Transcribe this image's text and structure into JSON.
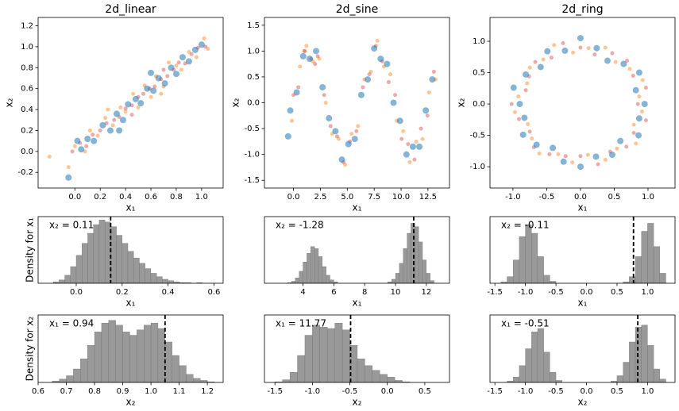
{
  "chart_data": [
    {
      "type": "scatter",
      "title": "2d_linear",
      "xlabel": "x₁",
      "ylabel": "x₂",
      "xlim": [
        -0.29,
        1.17
      ],
      "ylim": [
        -0.35,
        1.28
      ],
      "xticks": [
        {
          "value": 0,
          "label": "0.0"
        },
        0.2,
        0.4,
        0.6,
        0.8,
        {
          "value": 1,
          "label": "1.0"
        }
      ],
      "yticks": [
        -0.2,
        {
          "value": 0,
          "label": "0.0"
        },
        0.2,
        0.4,
        0.6,
        0.8,
        {
          "value": 1,
          "label": "1.0"
        },
        1.2
      ],
      "series": [
        {
          "color": "#ff7f0e",
          "size": 2.5,
          "alpha": 0.45,
          "x": [
            -0.2,
            0.0,
            0.08,
            0.12,
            0.18,
            0.24,
            0.3,
            0.36,
            0.4,
            0.46,
            0.5,
            0.55,
            0.6,
            0.64,
            0.7,
            0.74,
            0.8,
            0.84,
            0.9,
            0.96,
            1.02,
            1.05,
            0.26,
            0.68,
            -0.05
          ],
          "values": [
            -0.05,
            0.05,
            0.0,
            0.2,
            0.15,
            0.32,
            0.25,
            0.42,
            0.38,
            0.55,
            0.42,
            0.63,
            0.52,
            0.72,
            0.62,
            0.85,
            0.82,
            0.78,
            0.95,
            0.9,
            1.08,
            0.98,
            0.4,
            0.55,
            -0.15
          ]
        },
        {
          "color": "#d62728",
          "size": 2.5,
          "alpha": 0.4,
          "x": [
            -0.02,
            0.04,
            0.09,
            0.14,
            0.2,
            0.25,
            0.31,
            0.35,
            0.4,
            0.45,
            0.5,
            0.54,
            0.59,
            0.63,
            0.68,
            0.73,
            0.78,
            0.82,
            0.87,
            0.92,
            0.97,
            1.03,
            0.45,
            0.7
          ],
          "values": [
            0.0,
            0.08,
            0.05,
            0.16,
            0.2,
            0.27,
            0.3,
            0.33,
            0.41,
            0.44,
            0.52,
            0.55,
            0.6,
            0.62,
            0.69,
            0.72,
            0.78,
            0.85,
            0.84,
            0.93,
            0.99,
            1.0,
            0.35,
            0.78
          ]
        },
        {
          "color": "#1f77b4",
          "size": 4,
          "alpha": 0.55,
          "x": [
            -0.05,
            0.05,
            0.1,
            0.15,
            0.22,
            0.28,
            0.33,
            0.38,
            0.42,
            0.48,
            0.52,
            0.57,
            0.62,
            0.66,
            0.71,
            0.76,
            0.8,
            0.85,
            0.9,
            0.95,
            1.0,
            0.35,
            0.6,
            0.02
          ],
          "values": [
            -0.25,
            0.02,
            0.12,
            0.1,
            0.25,
            0.2,
            0.36,
            0.3,
            0.45,
            0.5,
            0.46,
            0.6,
            0.58,
            0.7,
            0.65,
            0.8,
            0.74,
            0.9,
            0.86,
            0.97,
            1.02,
            0.2,
            0.75,
            0.1
          ]
        }
      ]
    },
    {
      "type": "scatter",
      "title": "2d_sine",
      "xlabel": "x₁",
      "ylabel": "x₂",
      "xlim": [
        -2.7,
        14.5
      ],
      "ylim": [
        -1.65,
        1.65
      ],
      "xticks": [
        {
          "value": 0,
          "label": "0.0"
        },
        2.5,
        {
          "value": 5,
          "label": "5.0"
        },
        7.5,
        {
          "value": 10,
          "label": "10.0"
        },
        12.5
      ],
      "yticks": [
        -1.5,
        {
          "value": -1,
          "label": "-1.0"
        },
        -0.5,
        {
          "value": 0,
          "label": "0.0"
        },
        0.5,
        {
          "value": 1,
          "label": "1.0"
        },
        1.5
      ],
      "series": [
        {
          "color": "#ff7f0e",
          "size": 2.5,
          "alpha": 0.45,
          "x": [
            -0.15,
            0.6,
            1.2,
            1.8,
            2.4,
            3.0,
            3.6,
            4.2,
            4.8,
            5.4,
            6.0,
            6.6,
            7.2,
            7.8,
            8.4,
            9.0,
            9.6,
            10.2,
            10.8,
            11.4,
            12.0,
            12.6,
            13.2,
            1.0
          ],
          "values": [
            -0.35,
            0.7,
            1.1,
            0.8,
            0.85,
            0.0,
            -0.6,
            -0.7,
            -1.2,
            -0.6,
            -0.45,
            0.45,
            0.6,
            1.2,
            0.7,
            0.55,
            -0.35,
            -0.55,
            -1.15,
            -0.75,
            -0.7,
            0.2,
            0.45,
            1.0
          ]
        },
        {
          "color": "#d62728",
          "size": 2.5,
          "alpha": 0.4,
          "x": [
            0.0,
            0.45,
            1.05,
            1.65,
            2.25,
            2.85,
            3.45,
            4.05,
            4.65,
            5.25,
            5.85,
            6.45,
            7.05,
            7.65,
            8.25,
            8.85,
            9.45,
            10.05,
            10.65,
            11.25,
            11.85,
            12.45,
            13.05,
            2.0
          ],
          "values": [
            0.15,
            0.3,
            1.0,
            0.85,
            0.9,
            0.15,
            -0.45,
            -0.65,
            -1.15,
            -0.75,
            -0.55,
            0.3,
            0.55,
            1.1,
            0.8,
            0.4,
            0.15,
            -0.7,
            -0.8,
            -1.1,
            -0.5,
            -0.25,
            0.6,
            0.75
          ]
        },
        {
          "color": "#1f77b4",
          "size": 4,
          "alpha": 0.55,
          "x": [
            -0.3,
            0.3,
            0.9,
            1.5,
            2.1,
            2.7,
            3.3,
            3.9,
            4.5,
            5.1,
            5.7,
            6.3,
            6.9,
            7.5,
            8.1,
            8.7,
            9.3,
            9.9,
            10.5,
            11.1,
            11.7,
            12.3,
            12.9,
            -0.5
          ],
          "values": [
            -0.15,
            0.2,
            0.9,
            0.85,
            1.0,
            0.3,
            -0.3,
            -0.55,
            -1.1,
            -0.8,
            -0.7,
            0.15,
            0.45,
            1.05,
            0.85,
            0.75,
            0.0,
            -0.35,
            -1.0,
            -0.85,
            -0.85,
            -0.15,
            0.45,
            -0.65
          ]
        }
      ]
    },
    {
      "type": "scatter",
      "title": "2d_ring",
      "xlabel": "x₁",
      "ylabel": "x₂",
      "xlim": [
        -1.34,
        1.4
      ],
      "ylim": [
        -1.34,
        1.38
      ],
      "xticks": [
        {
          "value": -1,
          "label": "-1.0"
        },
        -0.5,
        {
          "value": 0,
          "label": "0.0"
        },
        0.5,
        {
          "value": 1,
          "label": "1.0"
        }
      ],
      "yticks": [
        {
          "value": -1,
          "label": "-1.0"
        },
        -0.5,
        {
          "value": 0,
          "label": "0.0"
        },
        0.5,
        {
          "value": 1,
          "label": "1.0"
        }
      ],
      "series": [
        {
          "color": "#ff7f0e",
          "size": 2.5,
          "alpha": 0.45,
          "x": [
            0.87,
            0.92,
            0.73,
            0.52,
            0.37,
            0.12,
            -0.11,
            -0.39,
            -0.55,
            -0.75,
            -0.79,
            -0.92,
            -0.97,
            -0.78,
            -0.72,
            -0.61,
            -0.33,
            -0.12,
            0.11,
            0.37,
            0.54,
            0.82,
            0.79,
            0.91
          ],
          "values": [
            0.12,
            0.38,
            0.56,
            0.67,
            0.9,
            0.89,
            0.82,
            0.94,
            0.71,
            0.58,
            0.33,
            0.12,
            -0.13,
            -0.32,
            -0.55,
            -0.79,
            -0.8,
            -0.93,
            -0.81,
            -0.89,
            -0.71,
            -0.63,
            -0.33,
            -0.12
          ]
        },
        {
          "color": "#d62728",
          "size": 2.5,
          "alpha": 0.4,
          "x": [
            0.85,
            0.97,
            0.78,
            0.69,
            0.47,
            0.21,
            0.0,
            -0.26,
            -0.43,
            -0.67,
            -0.76,
            -0.81,
            -1.02,
            -0.91,
            -0.75,
            -0.69,
            -0.46,
            -0.22,
            0.0,
            0.26,
            0.44,
            0.68,
            0.79,
            0.97
          ],
          "values": [
            0.0,
            0.26,
            0.45,
            0.69,
            0.81,
            0.79,
            0.9,
            0.97,
            0.74,
            0.67,
            0.44,
            0.22,
            0.0,
            -0.24,
            -0.44,
            -0.69,
            -0.8,
            -0.83,
            -0.83,
            -0.96,
            -0.76,
            -0.68,
            -0.46,
            -0.26
          ]
        },
        {
          "color": "#1f77b4",
          "size": 4,
          "alpha": 0.55,
          "x": [
            0.95,
            0.82,
            0.87,
            0.64,
            0.4,
            0.24,
            0.0,
            -0.23,
            -0.49,
            -0.59,
            -0.81,
            -0.99,
            -0.9,
            -0.83,
            -0.85,
            -0.65,
            -0.41,
            -0.25,
            0.0,
            0.23,
            0.47,
            0.59,
            0.86,
            0.87
          ],
          "values": [
            0.0,
            0.22,
            0.5,
            0.64,
            0.69,
            0.89,
            1.05,
            0.85,
            0.84,
            0.59,
            0.47,
            0.26,
            0.0,
            -0.22,
            -0.49,
            -0.65,
            -0.7,
            -0.92,
            -1.0,
            -0.84,
            -0.81,
            -0.59,
            -0.5,
            -0.23
          ]
        }
      ]
    },
    {
      "type": "histogram",
      "xlabel": "x₁",
      "ylabel": "Density for x₁",
      "annotation": "x₂ = 0.11",
      "vline": 0.15,
      "color": "#999999",
      "xlim": [
        -0.166,
        0.64
      ],
      "ylim": [
        0,
        100
      ],
      "xticks": [
        {
          "value": 0,
          "label": "0.0"
        },
        0.2,
        0.4,
        0.6
      ],
      "bins": [
        -0.1,
        -0.075,
        -0.05,
        -0.025,
        0,
        0.025,
        0.05,
        0.075,
        0.1,
        0.125,
        0.15,
        0.175,
        0.2,
        0.225,
        0.25,
        0.275,
        0.3,
        0.325,
        0.35,
        0.375,
        0.4,
        0.425,
        0.45,
        0.475,
        0.5,
        0.525,
        0.55
      ],
      "values": [
        2,
        5,
        12,
        25,
        42,
        60,
        75,
        88,
        95,
        92,
        85,
        72,
        60,
        48,
        38,
        30,
        22,
        15,
        10,
        6,
        4,
        2,
        1,
        1,
        0,
        1
      ]
    },
    {
      "type": "histogram",
      "xlabel": "x₁",
      "annotation": "x₂ = -1.28",
      "vline": 11.18,
      "color": "#999999",
      "xlim": [
        1.5,
        13.5
      ],
      "ylim": [
        0,
        100
      ],
      "xticks": [
        4,
        6,
        8,
        10,
        12
      ],
      "bins": [
        3.0,
        3.25,
        3.5,
        3.75,
        4.0,
        4.25,
        4.5,
        4.75,
        5.0,
        5.25,
        5.5,
        5.75,
        6.0,
        6.25,
        6.5,
        6.75,
        7.0,
        7.25,
        7.5,
        7.75,
        8.0,
        8.25,
        8.5,
        8.75,
        9.0,
        9.25,
        9.5,
        9.75,
        10.0,
        10.25,
        10.5,
        10.75,
        11.0,
        11.25,
        11.5,
        11.75,
        12.0,
        12.25,
        12.5
      ],
      "values": [
        1,
        3,
        8,
        18,
        32,
        45,
        55,
        52,
        40,
        25,
        12,
        5,
        2,
        0,
        0,
        0,
        0,
        0,
        0,
        0,
        0,
        0,
        0,
        0,
        0,
        0,
        2,
        6,
        15,
        30,
        52,
        75,
        90,
        85,
        62,
        35,
        15,
        4
      ]
    },
    {
      "type": "histogram",
      "xlabel": "x₁",
      "annotation": "x₂ = -0.11",
      "vline": 0.77,
      "color": "#999999",
      "xlim": [
        -1.58,
        1.45
      ],
      "ylim": [
        0,
        100
      ],
      "xticks": [
        -1.5,
        {
          "value": -1,
          "label": "-1.0"
        },
        -0.5,
        {
          "value": 0,
          "label": "0.0"
        },
        0.5,
        {
          "value": 1,
          "label": "1.0"
        }
      ],
      "bins": [
        -1.4,
        -1.3,
        -1.2,
        -1.1,
        -1.0,
        -0.9,
        -0.8,
        -0.7,
        -0.6,
        -0.5,
        -0.4,
        -0.3,
        -0.2,
        -0.1,
        0,
        0.1,
        0.2,
        0.3,
        0.4,
        0.5,
        0.6,
        0.7,
        0.8,
        0.9,
        1.0,
        1.1,
        1.2,
        1.3
      ],
      "values": [
        2,
        10,
        35,
        70,
        88,
        75,
        40,
        12,
        3,
        0,
        0,
        0,
        0,
        0,
        0,
        0,
        0,
        0,
        0,
        0,
        2,
        10,
        40,
        78,
        90,
        55,
        15
      ]
    },
    {
      "type": "histogram",
      "xlabel": "x₂",
      "ylabel": "Density for x₂",
      "annotation": "x₁ = 0.94",
      "vline": 1.05,
      "color": "#999999",
      "xlim": [
        0.6,
        1.256
      ],
      "ylim": [
        0,
        100
      ],
      "xticks": [
        0.6,
        0.7,
        0.8,
        0.9,
        {
          "value": 1,
          "label": "1.0"
        },
        1.1,
        1.2
      ],
      "bins": [
        0.65,
        0.675,
        0.7,
        0.725,
        0.75,
        0.775,
        0.8,
        0.825,
        0.85,
        0.875,
        0.9,
        0.925,
        0.95,
        0.975,
        1.0,
        1.025,
        1.05,
        1.075,
        1.1,
        1.125,
        1.15,
        1.175,
        1.2,
        1.225
      ],
      "values": [
        2,
        5,
        10,
        20,
        35,
        55,
        75,
        88,
        92,
        85,
        75,
        70,
        78,
        85,
        88,
        80,
        60,
        40,
        25,
        12,
        6,
        3,
        1
      ]
    },
    {
      "type": "histogram",
      "xlabel": "x₂",
      "annotation": "x₁ = 11.77",
      "vline": -0.49,
      "color": "#999999",
      "xlim": [
        -1.64,
        0.83
      ],
      "ylim": [
        0,
        100
      ],
      "xticks": [
        -1.5,
        {
          "value": -1,
          "label": "-1.0"
        },
        -0.5,
        {
          "value": 0,
          "label": "0.0"
        },
        0.5
      ],
      "bins": [
        -1.5,
        -1.4,
        -1.3,
        -1.2,
        -1.1,
        -1.0,
        -0.9,
        -0.8,
        -0.7,
        -0.6,
        -0.5,
        -0.4,
        -0.3,
        -0.2,
        -0.1,
        0,
        0.1,
        0.2,
        0.3
      ],
      "values": [
        1,
        4,
        15,
        40,
        70,
        85,
        82,
        80,
        88,
        78,
        55,
        35,
        25,
        18,
        12,
        8,
        3,
        1
      ]
    },
    {
      "type": "histogram",
      "xlabel": "x₂",
      "annotation": "x₁ = -0.51",
      "vline": 0.84,
      "color": "#999999",
      "xlim": [
        -1.58,
        1.45
      ],
      "ylim": [
        0,
        100
      ],
      "xticks": [
        -1.5,
        {
          "value": -1,
          "label": "-1.0"
        },
        -0.5,
        {
          "value": 0,
          "label": "0.0"
        },
        0.5,
        {
          "value": 1,
          "label": "1.0"
        }
      ],
      "bins": [
        -1.3,
        -1.2,
        -1.1,
        -1.0,
        -0.9,
        -0.8,
        -0.7,
        -0.6,
        -0.5,
        -0.4,
        -0.3,
        -0.2,
        -0.1,
        0,
        0.1,
        0.2,
        0.3,
        0.4,
        0.5,
        0.6,
        0.7,
        0.8,
        0.9,
        1.0,
        1.1,
        1.2,
        1.3
      ],
      "values": [
        2,
        8,
        25,
        50,
        75,
        80,
        45,
        15,
        3,
        0,
        0,
        0,
        0,
        0,
        0,
        0,
        0,
        2,
        10,
        30,
        60,
        82,
        85,
        55,
        20,
        5
      ]
    }
  ]
}
